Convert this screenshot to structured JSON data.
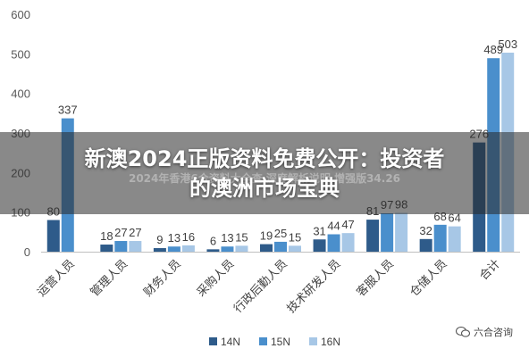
{
  "chart_data": {
    "type": "bar",
    "categories": [
      "运营人员",
      "管理人员",
      "财务人员",
      "采购人员",
      "行政后勤人员",
      "技术研发人员",
      "客服人员",
      "仓储人员",
      "合计"
    ],
    "series": [
      {
        "name": "14N",
        "values": [
          80,
          18,
          9,
          6,
          19,
          31,
          81,
          32,
          276
        ]
      },
      {
        "name": "15N",
        "values": [
          337,
          27,
          13,
          13,
          25,
          44,
          97,
          68,
          489
        ]
      },
      {
        "name": "16N",
        "values": [
          null,
          27,
          16,
          15,
          15,
          47,
          98,
          64,
          503
        ]
      }
    ],
    "value_labels": [
      [
        "80",
        "337",
        ""
      ],
      [
        "18",
        "27",
        "27"
      ],
      [
        "9",
        "13",
        "16"
      ],
      [
        "6",
        "13",
        "15"
      ],
      [
        "19",
        "25",
        "15"
      ],
      [
        "31",
        "44",
        "47"
      ],
      [
        "81",
        "97",
        "98"
      ],
      [
        "32",
        "68",
        "64"
      ],
      [
        "276",
        "489",
        "503"
      ]
    ],
    "y_ticks": [
      "0",
      "100",
      "200",
      "300",
      "400",
      "500",
      "600"
    ],
    "ylim": [
      0,
      600
    ],
    "grid": false,
    "legend": "bottom",
    "colors": {
      "14N": "#2E5B8A",
      "15N": "#4A8FCC",
      "16N": "#A7C7E6"
    },
    "title": "",
    "xlabel": "",
    "ylabel": ""
  },
  "banner": {
    "title_line1": "新澳2024正版资料免费公开：投资者",
    "title_line2": "的澳洲市场宝典",
    "subtitle": "2024年香港6合资料大全查 深度解析说明 增强版34.26"
  },
  "watermark": {
    "text": "六合咨询",
    "icon": "wechat-icon"
  }
}
